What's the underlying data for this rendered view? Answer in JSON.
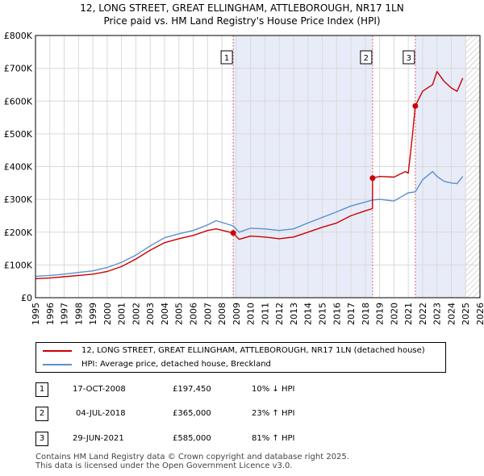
{
  "title_line1": "12, LONG STREET, GREAT ELLINGHAM, ATTLEBOROUGH, NR17 1LN",
  "title_line2": "Price paid vs. HM Land Registry's House Price Index (HPI)",
  "colors": {
    "property": "#cc0000",
    "hpi": "#5b8fd0",
    "shade": "#e8ecf8",
    "grid": "#d9d9d9",
    "marker_line": "#e06666"
  },
  "legend": {
    "property_label": "12, LONG STREET, GREAT ELLINGHAM, ATTLEBOROUGH, NR17 1LN (detached house)",
    "hpi_label": "HPI: Average price, detached house, Breckland"
  },
  "transactions": [
    {
      "num": "1",
      "date": "17-OCT-2008",
      "price": "£197,450",
      "hpi": "10% ↓ HPI"
    },
    {
      "num": "2",
      "date": "04-JUL-2018",
      "price": "£365,000",
      "hpi": "23% ↑ HPI"
    },
    {
      "num": "3",
      "date": "29-JUN-2021",
      "price": "£585,000",
      "hpi": "81% ↑ HPI"
    }
  ],
  "footer": {
    "line1": "Contains HM Land Registry data © Crown copyright and database right 2025.",
    "line2": "This data is licensed under the Open Government Licence v3.0."
  },
  "chart_data": {
    "type": "line",
    "xlim": [
      1995,
      2026
    ],
    "ylim": [
      0,
      800000
    ],
    "yticks": [
      0,
      100000,
      200000,
      300000,
      400000,
      500000,
      600000,
      700000,
      800000
    ],
    "ytick_labels": [
      "£0",
      "£100K",
      "£200K",
      "£300K",
      "£400K",
      "£500K",
      "£600K",
      "£700K",
      "£800K"
    ],
    "xticks": [
      1995,
      1996,
      1997,
      1998,
      1999,
      2000,
      2001,
      2002,
      2003,
      2004,
      2005,
      2006,
      2007,
      2008,
      2009,
      2010,
      2011,
      2012,
      2013,
      2014,
      2015,
      2016,
      2017,
      2018,
      2019,
      2020,
      2021,
      2022,
      2023,
      2024,
      2025,
      2026
    ],
    "xtick_labels": [
      "1995",
      "1996",
      "1997",
      "1998",
      "1999",
      "2000",
      "2001",
      "2002",
      "2003",
      "2004",
      "2005",
      "2006",
      "2007",
      "2008",
      "2009",
      "2010",
      "2011",
      "2012",
      "2013",
      "2014",
      "2015",
      "2016",
      "2017",
      "2018",
      "2019",
      "2020",
      "2021",
      "2022",
      "2023",
      "2024",
      "2025",
      "2026"
    ],
    "shaded_ranges": [
      [
        2008.79,
        2018.51
      ],
      [
        2021.49,
        2025.0
      ]
    ],
    "hatch_from": 2025.0,
    "sale_markers": [
      {
        "label": "1",
        "x": 2008.79,
        "y": 197450
      },
      {
        "label": "2",
        "x": 2018.51,
        "y": 365000
      },
      {
        "label": "3",
        "x": 2021.49,
        "y": 585000
      }
    ],
    "series": [
      {
        "name": "12, LONG STREET, GREAT ELLINGHAM, ATTLEBOROUGH, NR17 1LN (detached house)",
        "color": "#cc0000",
        "x": [
          1995,
          1996,
          1997,
          1998,
          1999,
          2000,
          2001,
          2002,
          2003,
          2004,
          2005,
          2006,
          2007,
          2007.6,
          2008.79,
          2009.2,
          2010,
          2011,
          2012,
          2013,
          2014,
          2015,
          2016,
          2017,
          2018,
          2018.5,
          2018.51,
          2019,
          2020,
          2020.8,
          2021.0,
          2021.3,
          2021.49,
          2022,
          2022.7,
          2023,
          2023.5,
          2024,
          2024.4,
          2024.8
        ],
        "values": [
          58000,
          60000,
          64000,
          68000,
          72000,
          80000,
          95000,
          118000,
          145000,
          168000,
          180000,
          190000,
          205000,
          210000,
          197450,
          178000,
          188000,
          185000,
          180000,
          185000,
          200000,
          215000,
          228000,
          250000,
          265000,
          272000,
          365000,
          370000,
          368000,
          385000,
          380000,
          500000,
          585000,
          630000,
          650000,
          690000,
          660000,
          640000,
          630000,
          670000
        ]
      },
      {
        "name": "HPI: Average price, detached house, Breckland",
        "color": "#5b8fd0",
        "x": [
          1995,
          1996,
          1997,
          1998,
          1999,
          2000,
          2001,
          2002,
          2003,
          2004,
          2005,
          2006,
          2007,
          2007.6,
          2008.79,
          2009.2,
          2010,
          2011,
          2012,
          2013,
          2014,
          2015,
          2016,
          2017,
          2018,
          2018.5,
          2019,
          2020,
          2021,
          2021.49,
          2022,
          2022.7,
          2023,
          2023.5,
          2024,
          2024.4,
          2024.8
        ],
        "values": [
          65000,
          68000,
          72000,
          77000,
          82000,
          92000,
          108000,
          130000,
          158000,
          183000,
          195000,
          205000,
          222000,
          235000,
          219000,
          200000,
          212000,
          210000,
          205000,
          210000,
          228000,
          245000,
          262000,
          280000,
          292000,
          298000,
          300000,
          295000,
          320000,
          323000,
          360000,
          385000,
          370000,
          355000,
          350000,
          348000,
          370000
        ]
      }
    ]
  }
}
